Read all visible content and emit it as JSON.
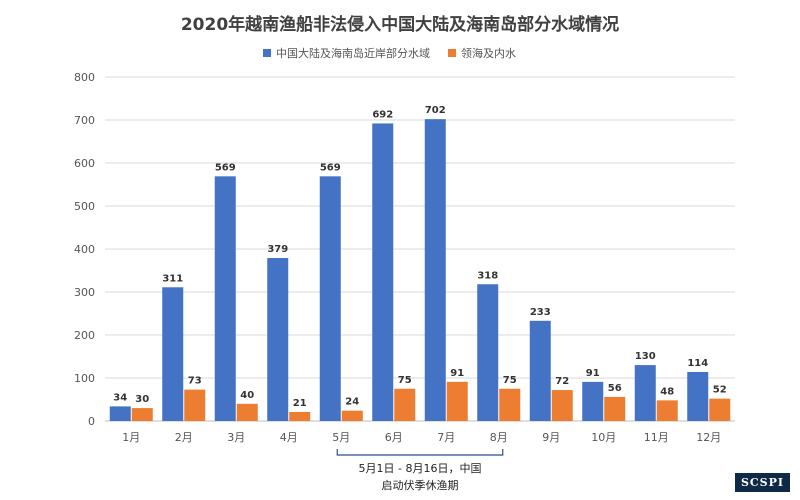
{
  "chart_data": {
    "type": "bar",
    "title": "2020年越南渔船非法侵入中国大陆及海南岛部分水域情况",
    "categories": [
      "1月",
      "2月",
      "3月",
      "4月",
      "5月",
      "6月",
      "7月",
      "8月",
      "9月",
      "10月",
      "11月",
      "12月"
    ],
    "series": [
      {
        "name": "中国大陆及海南岛近岸部分水域",
        "color": "#4472c4",
        "values": [
          34,
          311,
          569,
          379,
          569,
          692,
          702,
          318,
          233,
          91,
          130,
          114
        ]
      },
      {
        "name": "领海及内水",
        "color": "#ed7d31",
        "values": [
          30,
          73,
          40,
          21,
          24,
          75,
          91,
          75,
          72,
          56,
          48,
          52
        ]
      }
    ],
    "ylim": [
      0,
      800
    ],
    "yticks": [
      0,
      100,
      200,
      300,
      400,
      500,
      600,
      700,
      800
    ],
    "grid": true,
    "legend_position": "top-center",
    "data_labels": true,
    "annotation": {
      "line1": "5月1日 - 8月16日，中国",
      "line2": "启动伏季休渔期",
      "from_category": "5月",
      "to_category": "8月"
    }
  },
  "logo_text": "SCSPI"
}
